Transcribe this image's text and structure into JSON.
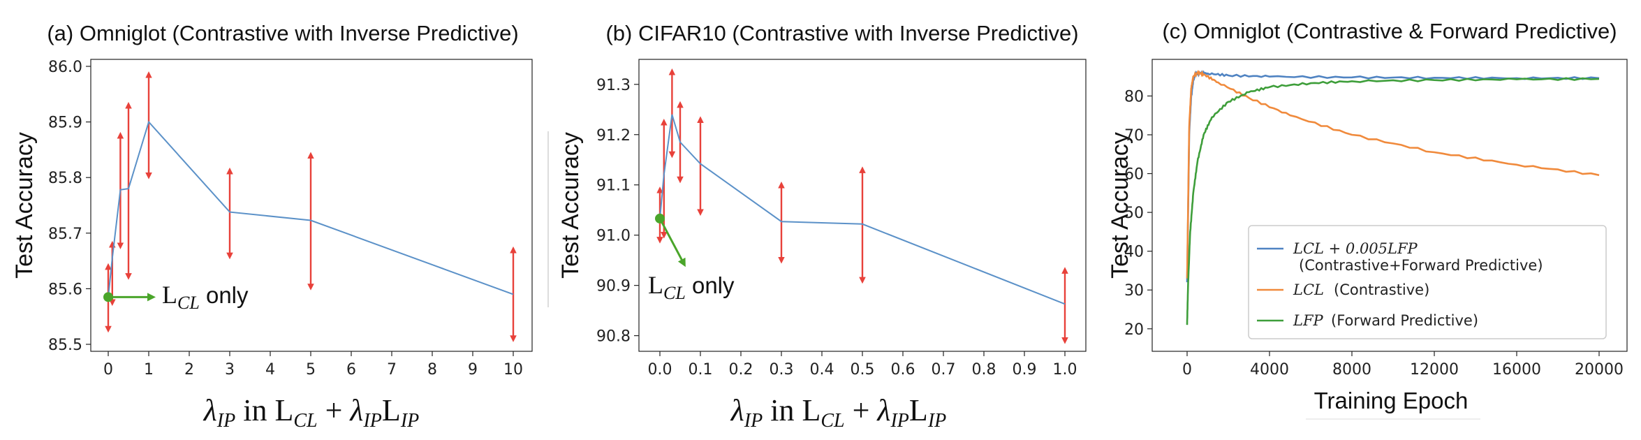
{
  "chart_data": [
    {
      "type": "line",
      "title": "(a) Omniglot (Contrastive with Inverse Predictive)",
      "ylabel": "Test Accuracy",
      "xlabel": "λIP in LCL + λIPLIP",
      "ylim": [
        85.5,
        86.0
      ],
      "xlim": [
        0,
        10
      ],
      "x_ticks": [
        "0",
        "1",
        "2",
        "3",
        "4",
        "5",
        "6",
        "7",
        "8",
        "9",
        "10"
      ],
      "y_ticks": [
        "85.5",
        "85.6",
        "85.7",
        "85.8",
        "85.9",
        "86.0"
      ],
      "x": [
        0,
        0.1,
        0.3,
        0.5,
        1,
        3,
        5,
        10
      ],
      "y": [
        85.585,
        85.655,
        85.778,
        85.78,
        85.9,
        85.738,
        85.723,
        85.59
      ],
      "err_low": [
        85.527,
        85.575,
        85.677,
        85.622,
        85.803,
        85.659,
        85.603,
        85.51
      ],
      "err_high": [
        85.64,
        85.68,
        85.876,
        85.93,
        85.985,
        85.812,
        85.84,
        85.67
      ],
      "color": "#5b91c8",
      "error_color": "#e8413a",
      "annotation": {
        "point": [
          0,
          85.585
        ],
        "subscript": "CL",
        "suffix": " only",
        "color": "#4aa52a"
      }
    },
    {
      "type": "line",
      "title": "(b) CIFAR10 (Contrastive with Inverse Predictive)",
      "ylabel": "Test Accuracy",
      "xlabel": "λIP in LCL + λIPLIP",
      "ylim": [
        90.78,
        91.34
      ],
      "xlim": [
        0,
        1.0
      ],
      "x_ticks": [
        "0.0",
        "0.1",
        "0.2",
        "0.3",
        "0.4",
        "0.5",
        "0.6",
        "0.7",
        "0.8",
        "0.9",
        "1.0"
      ],
      "y_ticks": [
        "90.8",
        "90.9",
        "91.0",
        "91.1",
        "91.2",
        "91.3"
      ],
      "x": [
        0,
        0.01,
        0.03,
        0.05,
        0.1,
        0.3,
        0.5,
        1.0
      ],
      "y": [
        91.033,
        91.12,
        91.24,
        91.185,
        91.142,
        91.027,
        91.022,
        90.863
      ],
      "err_low": [
        90.99,
        91.0,
        91.16,
        91.11,
        91.045,
        90.95,
        90.91,
        90.79
      ],
      "err_high": [
        91.09,
        91.225,
        91.325,
        91.26,
        91.23,
        91.1,
        91.13,
        90.93
      ],
      "color": "#5b91c8",
      "error_color": "#e8413a",
      "annotation": {
        "point": [
          0,
          91.033
        ],
        "subscript": "CL",
        "suffix": " only",
        "color": "#4aa52a"
      }
    },
    {
      "type": "line",
      "title": "(c) Omniglot (Contrastive & Forward Predictive)",
      "ylabel": "Test Accuracy",
      "xlabel": "Training Epoch",
      "ylim": [
        16,
        88
      ],
      "xlim": [
        0,
        20000
      ],
      "x_ticks": [
        "0",
        "4000",
        "8000",
        "12000",
        "16000",
        "20000"
      ],
      "y_ticks": [
        "20",
        "30",
        "40",
        "50",
        "60",
        "70",
        "80"
      ],
      "legend_position": "lower-right",
      "series": [
        {
          "name": "LCL + 0.005LFP (Contrastive+Forward Predictive)",
          "color": "#4f83c2",
          "x": [
            0,
            100,
            200,
            300,
            400,
            600,
            1000,
            2000,
            4000,
            8000,
            12000,
            16000,
            20000
          ],
          "y": [
            32,
            70,
            80,
            84,
            85.5,
            86,
            85.8,
            85.3,
            85,
            84.8,
            84.7,
            84.6,
            84.6
          ]
        },
        {
          "name": "LCL (Contrastive)",
          "color": "#f08a3c",
          "x": [
            0,
            100,
            200,
            300,
            500,
            800,
            1500,
            3000,
            5000,
            8000,
            12000,
            16000,
            20000
          ],
          "y": [
            33,
            72,
            82,
            85,
            86,
            85.6,
            83.5,
            79.5,
            75,
            70,
            65.5,
            62.3,
            59.6
          ]
        },
        {
          "name": "LFP (Forward Predictive)",
          "color": "#3e9e3a",
          "x": [
            0,
            50,
            150,
            300,
            500,
            800,
            1200,
            2000,
            3000,
            4000,
            6000,
            8000,
            12000,
            16000,
            20000
          ],
          "y": [
            21,
            32,
            45,
            55,
            63,
            70,
            74.5,
            78.5,
            81,
            82.3,
            83.3,
            83.8,
            84.1,
            84.3,
            84.4
          ]
        }
      ],
      "legend": [
        {
          "label": "LCL + 0.005LFP",
          "desc": "(Contrastive+Forward Predictive)",
          "color": "#4f83c2"
        },
        {
          "label": "LCL",
          "desc": "(Contrastive)",
          "color": "#f08a3c"
        },
        {
          "label": "LFP",
          "desc": "(Forward Predictive)",
          "color": "#3e9e3a"
        }
      ]
    }
  ]
}
